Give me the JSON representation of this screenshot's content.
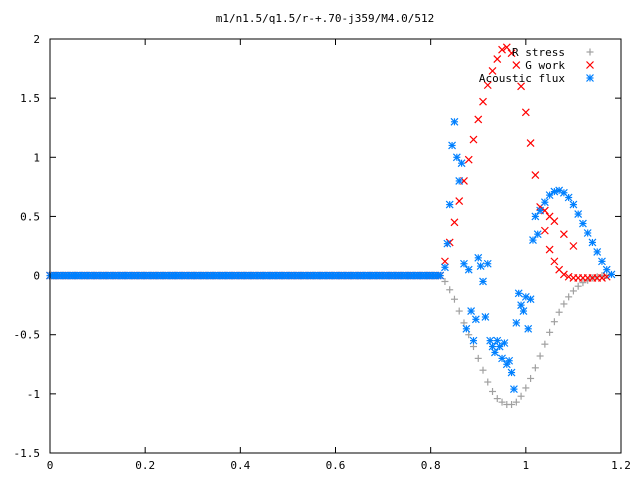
{
  "chart_data": {
    "type": "scatter",
    "title": "m1/n1.5/q1.5/r-+.70-j359/M4.0/512",
    "xlabel": "",
    "ylabel": "",
    "xlim": [
      0,
      1.2
    ],
    "ylim": [
      -1.5,
      2
    ],
    "grid": false,
    "legend_position": "top-right",
    "x_ticks": [
      "0",
      "0.2",
      "0.4",
      "0.6",
      "0.8",
      "1",
      "1.2"
    ],
    "y_ticks": [
      "-1.5",
      "-1",
      "-0.5",
      "0",
      "0.5",
      "1",
      "1.5",
      "2"
    ],
    "series": [
      {
        "name": "R stress",
        "marker": "plus",
        "color": "#a0a0a0",
        "points": [
          [
            0.0,
            0
          ],
          [
            0.2,
            0
          ],
          [
            0.4,
            0
          ],
          [
            0.6,
            0
          ],
          [
            0.8,
            0
          ],
          [
            0.82,
            0.0
          ],
          [
            0.83,
            -0.05
          ],
          [
            0.84,
            -0.12
          ],
          [
            0.85,
            -0.2
          ],
          [
            0.86,
            -0.3
          ],
          [
            0.87,
            -0.4
          ],
          [
            0.88,
            -0.5
          ],
          [
            0.89,
            -0.6
          ],
          [
            0.9,
            -0.7
          ],
          [
            0.91,
            -0.8
          ],
          [
            0.92,
            -0.9
          ],
          [
            0.93,
            -0.98
          ],
          [
            0.94,
            -1.04
          ],
          [
            0.95,
            -1.07
          ],
          [
            0.96,
            -1.09
          ],
          [
            0.97,
            -1.09
          ],
          [
            0.98,
            -1.07
          ],
          [
            0.99,
            -1.02
          ],
          [
            1.0,
            -0.95
          ],
          [
            1.01,
            -0.87
          ],
          [
            1.02,
            -0.78
          ],
          [
            1.03,
            -0.68
          ],
          [
            1.04,
            -0.58
          ],
          [
            1.05,
            -0.48
          ],
          [
            1.06,
            -0.39
          ],
          [
            1.07,
            -0.31
          ],
          [
            1.08,
            -0.24
          ],
          [
            1.09,
            -0.18
          ],
          [
            1.1,
            -0.13
          ],
          [
            1.11,
            -0.09
          ],
          [
            1.12,
            -0.06
          ],
          [
            1.13,
            -0.04
          ],
          [
            1.14,
            -0.02
          ],
          [
            1.15,
            -0.01
          ],
          [
            1.16,
            0.0
          ],
          [
            1.17,
            0.0
          ]
        ]
      },
      {
        "name": "G work",
        "marker": "cross",
        "color": "#ff0000",
        "points": [
          [
            0.0,
            0
          ],
          [
            0.2,
            0
          ],
          [
            0.4,
            0
          ],
          [
            0.6,
            0
          ],
          [
            0.8,
            0
          ],
          [
            0.82,
            0.0
          ],
          [
            0.83,
            0.12
          ],
          [
            0.84,
            0.28
          ],
          [
            0.85,
            0.45
          ],
          [
            0.86,
            0.63
          ],
          [
            0.87,
            0.8
          ],
          [
            0.88,
            0.98
          ],
          [
            0.89,
            1.15
          ],
          [
            0.9,
            1.32
          ],
          [
            0.91,
            1.47
          ],
          [
            0.92,
            1.61
          ],
          [
            0.93,
            1.73
          ],
          [
            0.94,
            1.83
          ],
          [
            0.95,
            1.91
          ],
          [
            0.96,
            1.93
          ],
          [
            0.97,
            1.88
          ],
          [
            0.98,
            1.78
          ],
          [
            0.99,
            1.6
          ],
          [
            1.0,
            1.38
          ],
          [
            1.01,
            1.12
          ],
          [
            1.02,
            0.85
          ],
          [
            1.03,
            0.58
          ],
          [
            1.04,
            0.38
          ],
          [
            1.05,
            0.22
          ],
          [
            1.06,
            0.12
          ],
          [
            1.07,
            0.05
          ],
          [
            1.08,
            0.01
          ],
          [
            1.09,
            -0.01
          ],
          [
            1.1,
            -0.02
          ],
          [
            1.11,
            -0.02
          ],
          [
            1.12,
            -0.02
          ],
          [
            1.13,
            -0.02
          ],
          [
            1.14,
            -0.02
          ],
          [
            1.15,
            -0.02
          ],
          [
            1.16,
            -0.02
          ],
          [
            1.17,
            -0.01
          ],
          [
            1.04,
            0.55
          ],
          [
            1.05,
            0.5
          ],
          [
            1.06,
            0.46
          ],
          [
            1.08,
            0.35
          ],
          [
            1.1,
            0.25
          ]
        ]
      },
      {
        "name": "Acoustic flux",
        "marker": "star",
        "color": "#0080ff",
        "points": [
          [
            0.0,
            0
          ],
          [
            0.2,
            0
          ],
          [
            0.4,
            0
          ],
          [
            0.6,
            0
          ],
          [
            0.8,
            0
          ],
          [
            0.82,
            0.0
          ],
          [
            0.83,
            0.07
          ],
          [
            0.835,
            0.27
          ],
          [
            0.84,
            0.6
          ],
          [
            0.845,
            1.1
          ],
          [
            0.85,
            1.3
          ],
          [
            0.855,
            1.0
          ],
          [
            0.86,
            0.8
          ],
          [
            0.865,
            0.95
          ],
          [
            0.87,
            0.1
          ],
          [
            0.875,
            -0.45
          ],
          [
            0.88,
            0.05
          ],
          [
            0.885,
            -0.3
          ],
          [
            0.89,
            -0.55
          ],
          [
            0.895,
            -0.37
          ],
          [
            0.9,
            0.15
          ],
          [
            0.905,
            0.08
          ],
          [
            0.91,
            -0.05
          ],
          [
            0.915,
            -0.35
          ],
          [
            0.92,
            0.1
          ],
          [
            0.925,
            -0.55
          ],
          [
            0.93,
            -0.6
          ],
          [
            0.935,
            -0.65
          ],
          [
            0.94,
            -0.55
          ],
          [
            0.945,
            -0.6
          ],
          [
            0.95,
            -0.7
          ],
          [
            0.955,
            -0.57
          ],
          [
            0.96,
            -0.75
          ],
          [
            0.965,
            -0.72
          ],
          [
            0.97,
            -0.82
          ],
          [
            0.975,
            -0.96
          ],
          [
            0.98,
            -0.4
          ],
          [
            0.985,
            -0.15
          ],
          [
            0.99,
            -0.25
          ],
          [
            0.995,
            -0.3
          ],
          [
            1.0,
            -0.18
          ],
          [
            1.005,
            -0.45
          ],
          [
            1.01,
            -0.2
          ],
          [
            1.015,
            0.3
          ],
          [
            1.02,
            0.5
          ],
          [
            1.025,
            0.35
          ],
          [
            1.03,
            0.55
          ],
          [
            1.04,
            0.62
          ],
          [
            1.05,
            0.68
          ],
          [
            1.06,
            0.71
          ],
          [
            1.07,
            0.72
          ],
          [
            1.08,
            0.7
          ],
          [
            1.09,
            0.66
          ],
          [
            1.1,
            0.6
          ],
          [
            1.11,
            0.52
          ],
          [
            1.12,
            0.44
          ],
          [
            1.13,
            0.36
          ],
          [
            1.14,
            0.28
          ],
          [
            1.15,
            0.2
          ],
          [
            1.16,
            0.12
          ],
          [
            1.17,
            0.05
          ],
          [
            1.18,
            0.01
          ]
        ]
      }
    ]
  }
}
